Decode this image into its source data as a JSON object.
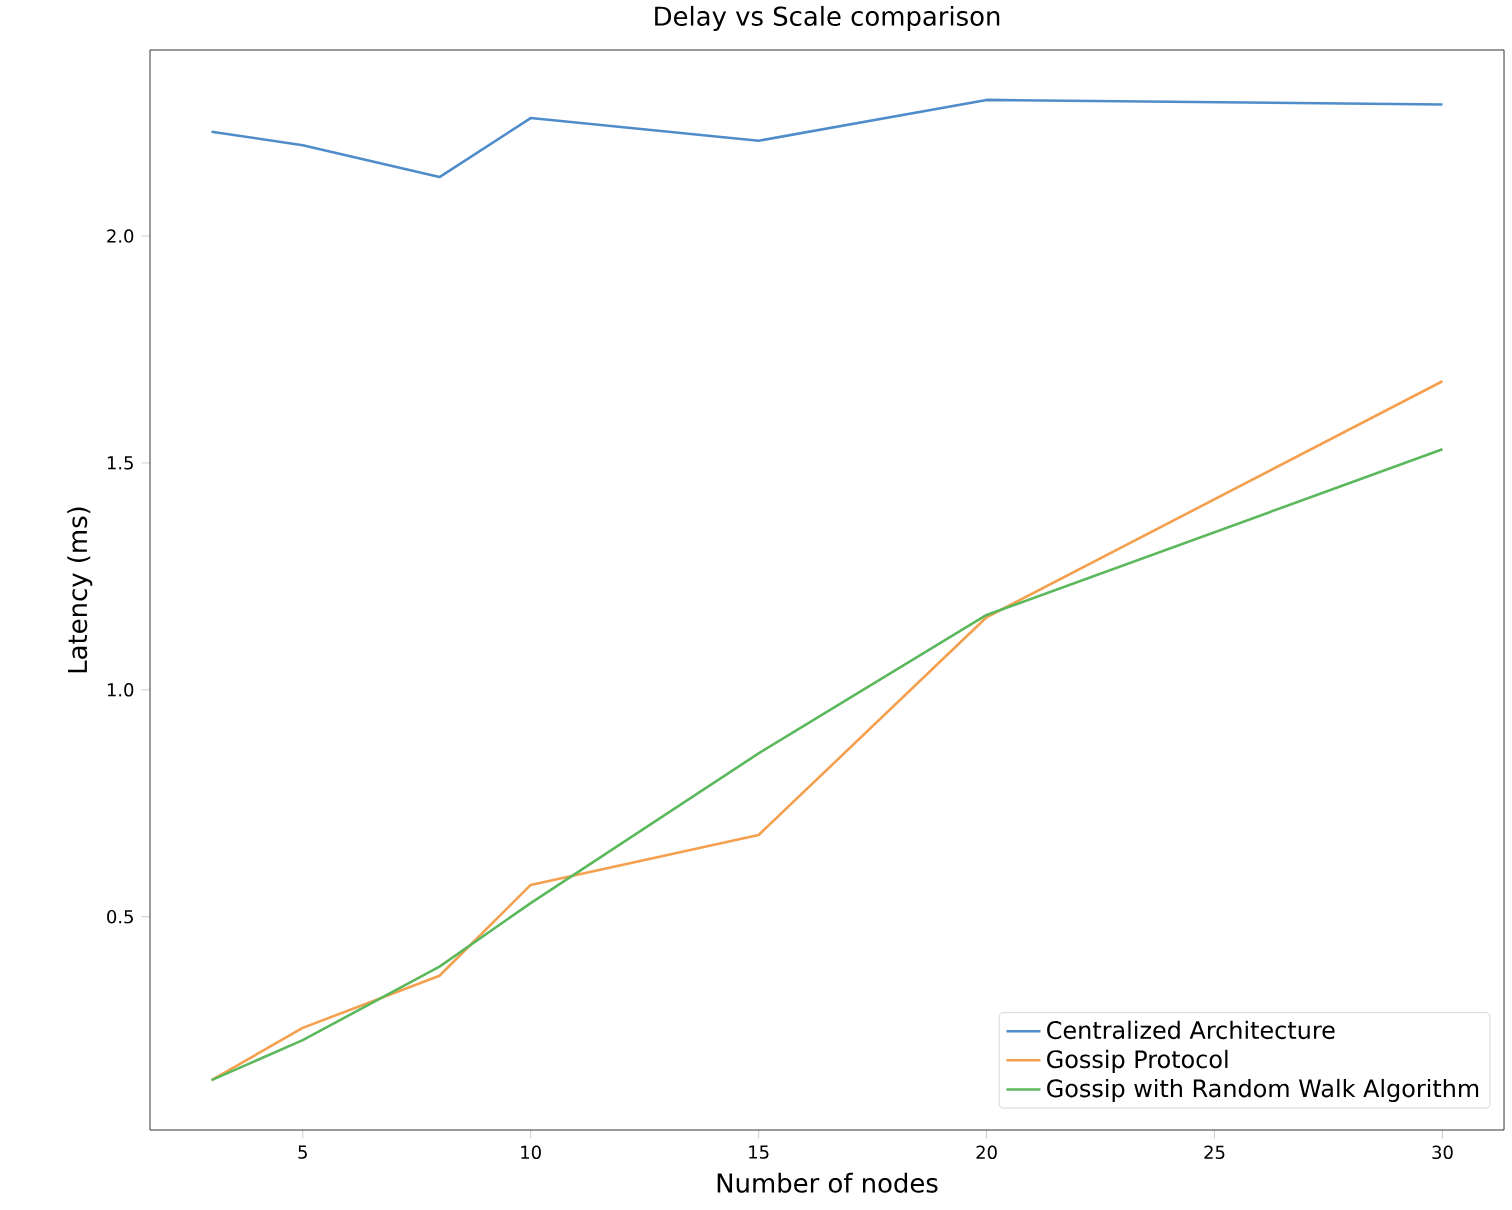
{
  "chart_data": {
    "type": "line",
    "title": "Delay vs Scale comparison",
    "xlabel": "Number of nodes",
    "ylabel": "Latency (ms)",
    "x": [
      3,
      5,
      8,
      10,
      15,
      20,
      30
    ],
    "series": [
      {
        "name": "Centralized Architecture",
        "color": "#4f8cc9",
        "values": [
          2.23,
          2.2,
          2.13,
          2.26,
          2.21,
          2.3,
          2.29
        ]
      },
      {
        "name": "Gossip Protocol",
        "color": "#f5a04f",
        "values": [
          0.14,
          0.255,
          0.37,
          0.57,
          0.68,
          1.16,
          1.68
        ]
      },
      {
        "name": "Gossip with Random Walk Algorithm",
        "color": "#5cb85c",
        "values": [
          0.14,
          0.228,
          0.39,
          0.53,
          0.86,
          1.165,
          1.53
        ]
      }
    ],
    "xlim": [
      1.65,
      31.35
    ],
    "ylim": [
      0.03,
      2.41
    ],
    "xticks": [
      5,
      10,
      15,
      20,
      25,
      30
    ],
    "yticks": [
      0.5,
      {
        "value": 1.0,
        "label": "1.0"
      },
      1.5,
      {
        "value": 2.0,
        "label": "2.0"
      }
    ],
    "legend": "bottom right",
    "grid": false,
    "marker": "none",
    "line_style": "solid"
  }
}
